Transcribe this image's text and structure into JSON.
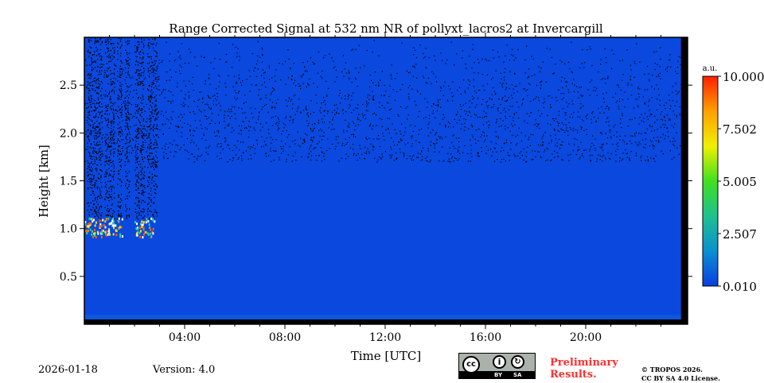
{
  "chart_data": {
    "type": "heatmap",
    "title": "Range Corrected Signal at 532 nm NR of pollyxt_lacros2 at Invercargill",
    "xlabel": "Time [UTC]",
    "ylabel": "Height [km]",
    "xlim_hours": [
      0,
      24
    ],
    "ylim_km": [
      0,
      3.0
    ],
    "xticks": [
      {
        "h": 4,
        "label": "04:00"
      },
      {
        "h": 8,
        "label": "08:00"
      },
      {
        "h": 12,
        "label": "12:00"
      },
      {
        "h": 16,
        "label": "16:00"
      },
      {
        "h": 20,
        "label": "20:00"
      }
    ],
    "yticks": [
      {
        "v": 0.5,
        "label": "0.5"
      },
      {
        "v": 1.0,
        "label": "1.0"
      },
      {
        "v": 1.5,
        "label": "1.5"
      },
      {
        "v": 2.0,
        "label": "2.0"
      },
      {
        "v": 2.5,
        "label": "2.5"
      }
    ],
    "colorbar": {
      "unit": "a.u.",
      "range": [
        0.01,
        10.0
      ],
      "ticks": [
        {
          "v": 0.01,
          "label": "0.010"
        },
        {
          "v": 2.507,
          "label": "2.507"
        },
        {
          "v": 5.005,
          "label": "5.005"
        },
        {
          "v": 7.502,
          "label": "7.502"
        },
        {
          "v": 10.0,
          "label": "10.000"
        }
      ],
      "colormap": [
        "#0a3ee0",
        "#0a90d0",
        "#1fc090",
        "#40e020",
        "#f0f000",
        "#ffa000",
        "#ff2000"
      ]
    },
    "features": {
      "background_value": 0.6,
      "cloud": {
        "start_h": 0,
        "end_h": 2.8,
        "height_km": 1.0,
        "value": 9
      },
      "noisy_columns_h": [
        0.1,
        0.3,
        0.5,
        0.8,
        1.0,
        1.3,
        1.6,
        2.0,
        2.2,
        2.5,
        2.7
      ],
      "missing_data": {
        "bottom_km": 0.05,
        "right_from_h": 23.8
      }
    }
  },
  "footer": {
    "date": "2026-01-18",
    "version": "Version: 4.0",
    "preliminary": [
      "Preliminary",
      "Results."
    ],
    "copyright": [
      "© TROPOS 2026.",
      "CC BY SA 4.0 License."
    ],
    "license_badge": {
      "cc": "cc",
      "by": "BY",
      "sa": "SA"
    }
  }
}
